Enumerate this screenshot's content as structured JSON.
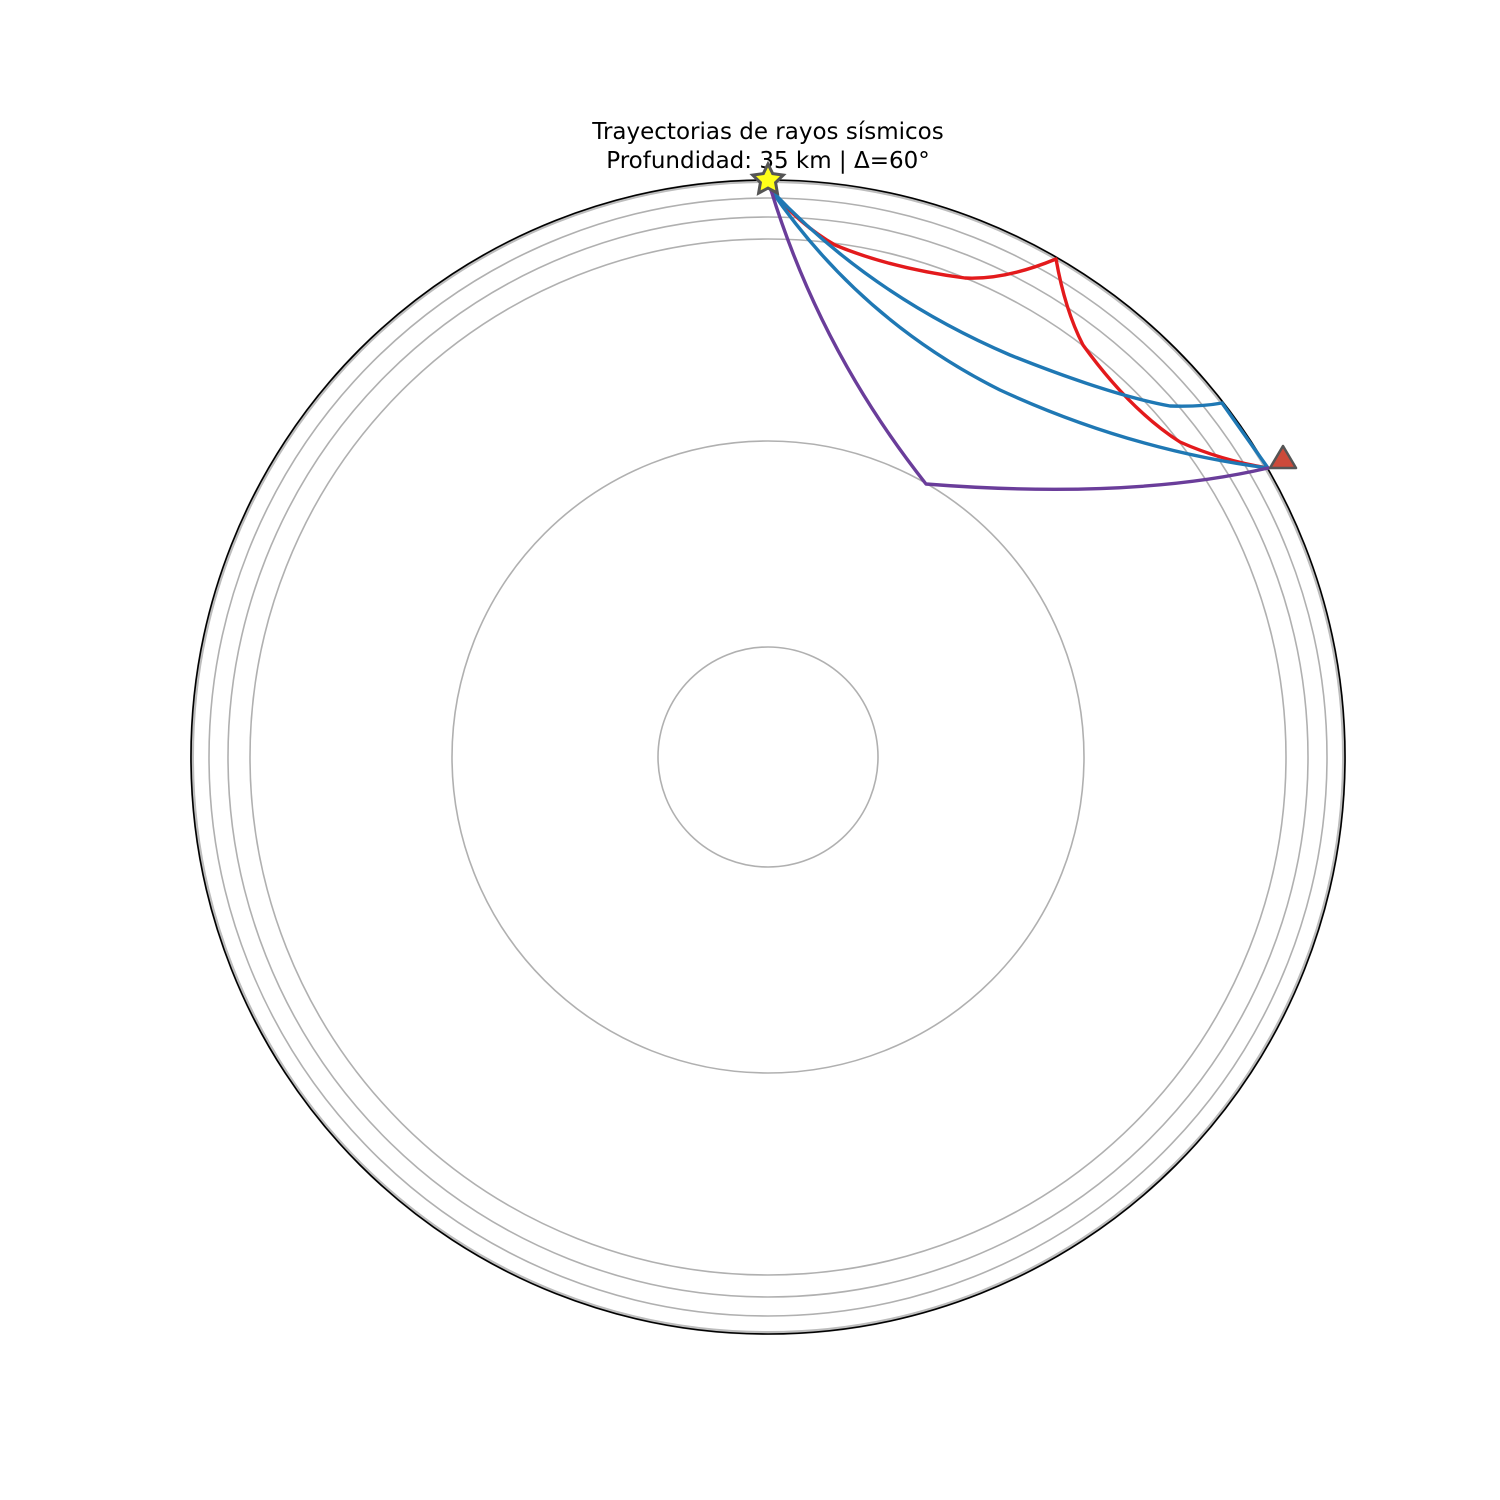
{
  "title": {
    "line1": "Trayectorias de rayos sísmicos",
    "line2": "Profundidad: 35 km | Δ=60°"
  },
  "diagram": {
    "type": "seismic-ray-paths",
    "epicentral_distance_deg": 60,
    "source_depth_km": 35,
    "source_symbol": "star-icon",
    "station_symbol": "triangle-icon",
    "source_color": "#ffff1a",
    "station_color": "#cc4a3a",
    "layer_boundaries": [
      "surface",
      "crust-1",
      "crust-2",
      "upper-mantle-410",
      "outer-core",
      "inner-core"
    ],
    "rays": [
      {
        "name": "",
        "color": "#e31a1c"
      },
      {
        "name": "",
        "color": "#1f78b4"
      },
      {
        "name": "",
        "color": "#1f78b4"
      },
      {
        "name": "",
        "color": "#6a3d9a"
      }
    ]
  }
}
